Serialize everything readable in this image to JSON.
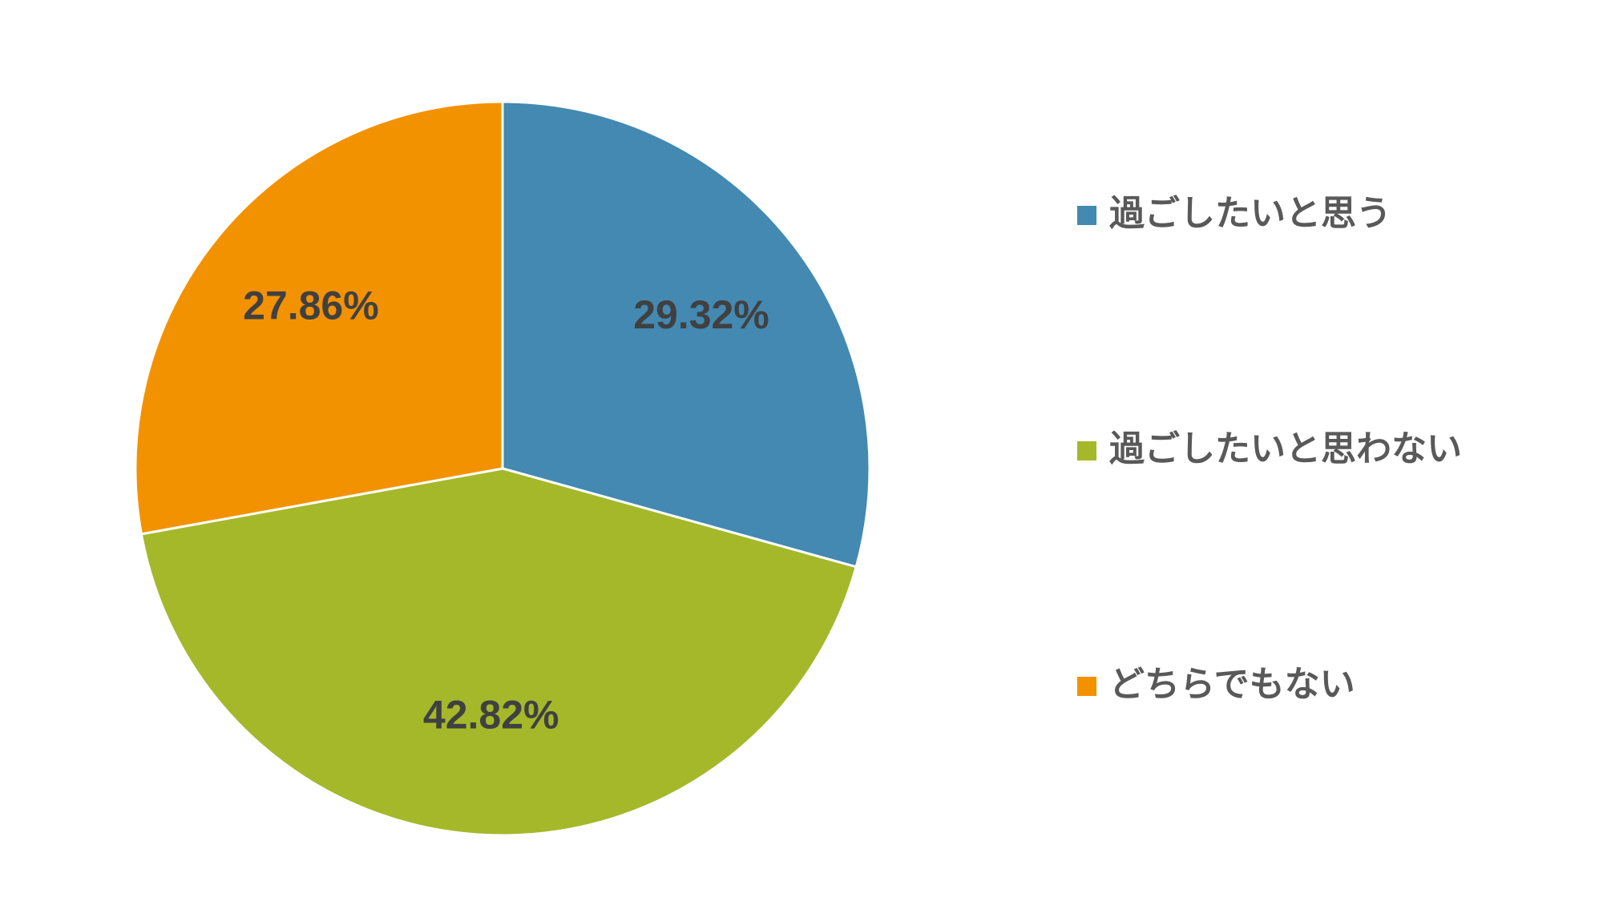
{
  "chart_data": {
    "type": "pie",
    "categories": [
      "過ごしたいと思う",
      "過ごしたいと思わない",
      "どちらでもない"
    ],
    "values": [
      29.32,
      42.82,
      27.86
    ],
    "value_labels": [
      "29.32%",
      "42.82%",
      "27.86%"
    ],
    "colors": [
      "#4389b2",
      "#a5b82a",
      "#f39200"
    ],
    "legend": "right"
  }
}
